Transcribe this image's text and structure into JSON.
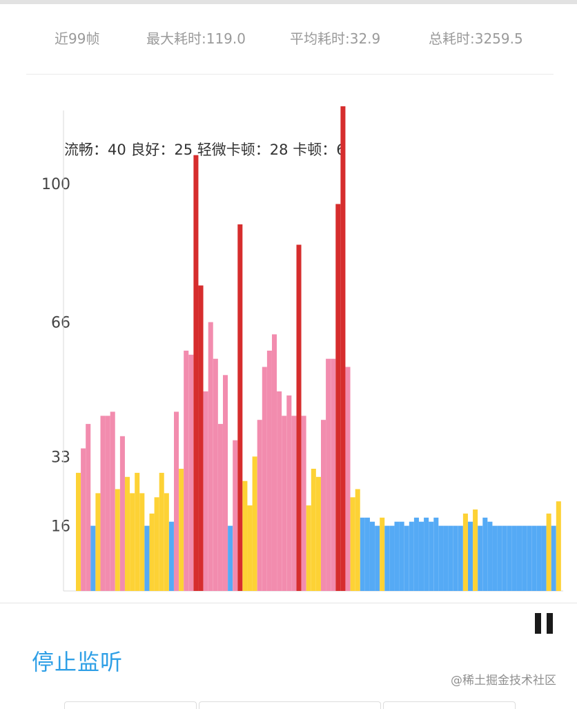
{
  "stats": {
    "frames": "近99帧",
    "max_time": "最大耗时:119.0",
    "avg_time": "平均耗时:32.9",
    "total_time": "总耗时:3259.5"
  },
  "actions": {
    "stop_label": "停止监听"
  },
  "watermark": "@稀土掘金技术社区",
  "chart_data": {
    "type": "bar",
    "summary": "流畅：40 良好：25 轻微卡顿：28 卡顿：6",
    "y_ticks": [
      100,
      66,
      33,
      16
    ],
    "ylim": [
      0,
      119
    ],
    "colors": {
      "smooth": "#55aaf5",
      "good": "#fdd235",
      "slight_lag": "#f28cae",
      "lag": "#d62d2d"
    },
    "values": [
      29,
      35,
      41,
      16,
      24,
      43,
      43,
      44,
      25,
      38,
      28,
      24,
      29,
      24,
      16,
      19,
      23,
      29,
      24,
      17,
      44,
      30,
      59,
      58,
      107,
      75,
      49,
      66,
      57,
      41,
      53,
      16,
      37,
      90,
      27,
      21,
      33,
      42,
      55,
      59,
      63,
      49,
      43,
      48,
      43,
      85,
      43,
      21,
      30,
      28,
      42,
      57,
      57,
      95,
      119,
      55,
      23,
      25,
      18,
      18,
      17,
      16,
      18,
      16,
      16,
      17,
      17,
      16,
      17,
      18,
      17,
      18,
      17,
      18,
      16,
      16,
      16,
      16,
      16,
      19,
      17,
      20,
      16,
      18,
      17,
      16,
      16,
      16,
      16,
      16,
      16,
      16,
      16,
      16,
      16,
      16,
      19,
      16,
      22
    ],
    "categories": [
      "good",
      "slight_lag",
      "slight_lag",
      "smooth",
      "good",
      "slight_lag",
      "slight_lag",
      "slight_lag",
      "good",
      "slight_lag",
      "good",
      "good",
      "good",
      "good",
      "smooth",
      "good",
      "good",
      "good",
      "good",
      "smooth",
      "slight_lag",
      "good",
      "slight_lag",
      "slight_lag",
      "lag",
      "lag",
      "slight_lag",
      "slight_lag",
      "slight_lag",
      "slight_lag",
      "slight_lag",
      "smooth",
      "slight_lag",
      "lag",
      "good",
      "good",
      "good",
      "slight_lag",
      "slight_lag",
      "slight_lag",
      "slight_lag",
      "slight_lag",
      "slight_lag",
      "slight_lag",
      "slight_lag",
      "lag",
      "slight_lag",
      "good",
      "good",
      "good",
      "slight_lag",
      "slight_lag",
      "slight_lag",
      "lag",
      "lag",
      "slight_lag",
      "good",
      "good",
      "smooth",
      "smooth",
      "smooth",
      "smooth",
      "good",
      "smooth",
      "smooth",
      "smooth",
      "smooth",
      "smooth",
      "smooth",
      "smooth",
      "smooth",
      "smooth",
      "smooth",
      "smooth",
      "smooth",
      "smooth",
      "smooth",
      "smooth",
      "smooth",
      "good",
      "smooth",
      "good",
      "smooth",
      "smooth",
      "smooth",
      "smooth",
      "smooth",
      "smooth",
      "smooth",
      "smooth",
      "smooth",
      "smooth",
      "smooth",
      "smooth",
      "smooth",
      "smooth",
      "good",
      "smooth",
      "good"
    ]
  }
}
